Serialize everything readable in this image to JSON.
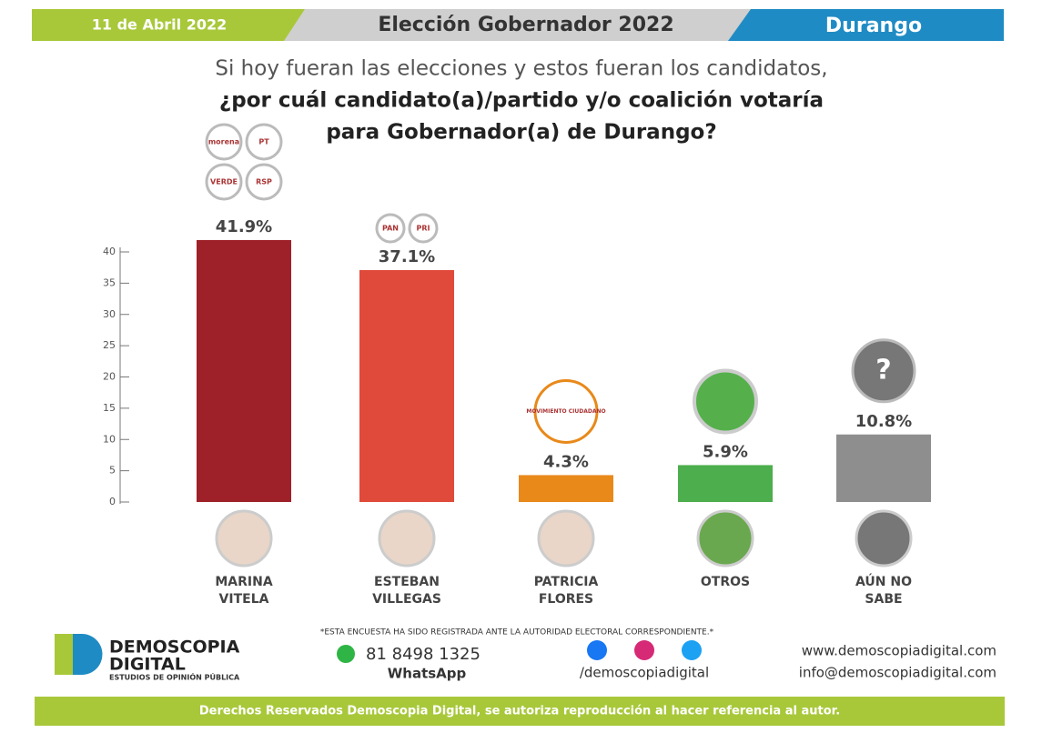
{
  "header": {
    "date": "11 de Abril 2022",
    "title": "Elección Gobernador 2022",
    "state": "Durango"
  },
  "question": [
    "Si hoy fueran las elecciones y estos fueran los candidatos,",
    "¿por cuál candidato(a)/partido y/o coalición votaría",
    "para Gobernador(a) de Durango?"
  ],
  "chart_data": {
    "type": "bar",
    "categories": [
      "MARINA VITELA",
      "ESTEBAN VILLEGAS",
      "PATRICIA FLORES",
      "OTROS",
      "AÚN NO SABE"
    ],
    "values": [
      41.9,
      37.1,
      4.3,
      5.9,
      10.8
    ],
    "value_labels": [
      "41.9%",
      "37.1%",
      "4.3%",
      "5.9%",
      "10.8%"
    ],
    "colors": [
      "#9e2129",
      "#e04a3a",
      "#e8891a",
      "#4cae4c",
      "#8e8e8e"
    ],
    "party_logos": [
      [
        "morena",
        "PT",
        "VERDE",
        "RSP"
      ],
      [
        "PAN",
        "PRI"
      ],
      [
        "MOVIMIENTO CIUDADANO"
      ],
      [],
      [
        "?"
      ]
    ],
    "ylim": [
      0,
      40
    ],
    "yticks": [
      0,
      5,
      10,
      15,
      20,
      25,
      30,
      35,
      40
    ]
  },
  "footer": {
    "brand": "DEMOSCOPIA",
    "brand2": "DIGITAL",
    "tagline": "ESTUDIOS DE OPINIÓN PÚBLICA",
    "note": "*ESTA ENCUESTA HA SIDO REGISTRADA ANTE LA AUTORIDAD ELECTORAL CORRESPONDIENTE.*",
    "phone": "81 8498 1325",
    "whatsapp": "WhatsApp",
    "social": "/demoscopiadigital",
    "web": "www.demoscopiadigital.com",
    "email": "info@demoscopiadigital.com",
    "rights": "Derechos Reservados Demoscopia Digital, se autoriza reproducción al hacer referencia al autor."
  }
}
